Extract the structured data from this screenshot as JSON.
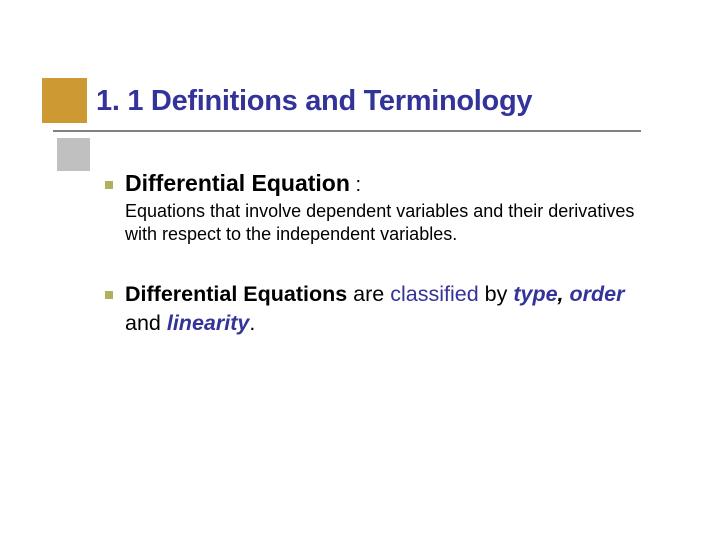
{
  "colors": {
    "title_color": "#333399",
    "accent_color": "#333399",
    "gold_square": "#cc9933",
    "grey_square": "#c0c0c0",
    "bullet": "#b0b060",
    "underline": "#808080",
    "body_text": "#000000",
    "background": "#ffffff"
  },
  "title": "1. 1 Definitions and Terminology",
  "section1": {
    "term": "Differential Equation",
    "colon": " : ",
    "definition": "Equations that involve dependent variables and their derivatives with respect to the independent variables."
  },
  "section2": {
    "lead_bold": "Differential Equations",
    "mid1": " are ",
    "classified": "classified",
    "mid2": " by ",
    "type": "type",
    "comma": ", ",
    "order": "order",
    "and": " and ",
    "linearity": "linearity",
    "period": "."
  }
}
